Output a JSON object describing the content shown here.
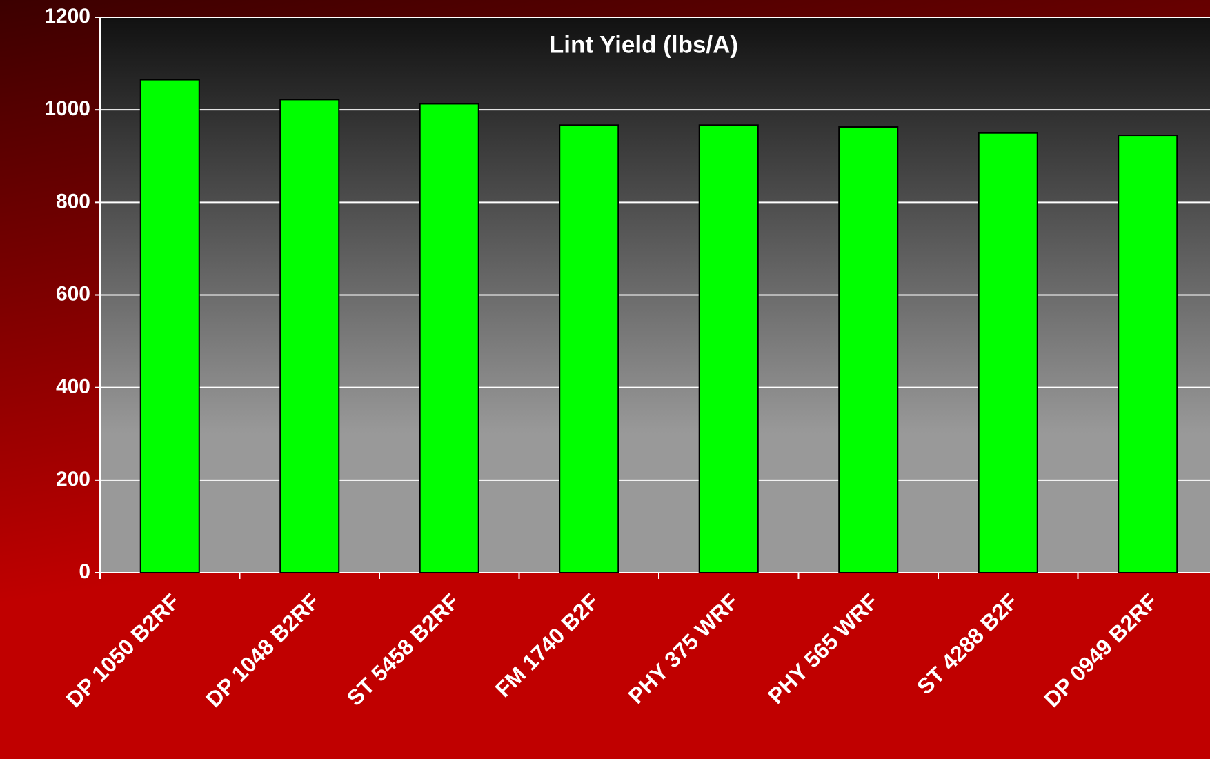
{
  "chart_data": {
    "type": "bar",
    "title": "Lint Yield (lbs/A)",
    "categories": [
      "DP 1050 B2RF",
      "DP 1048 B2RF",
      "ST 5458 B2RF",
      "FM 1740 B2F",
      "PHY 375 WRF",
      "PHY 565 WRF",
      "ST 4288 B2F",
      "DP 0949 B2RF"
    ],
    "values": [
      1065,
      1022,
      1013,
      967,
      967,
      963,
      950,
      945
    ],
    "color": "#00ff00",
    "ylim": [
      0,
      1200
    ],
    "yticks": [
      0,
      200,
      400,
      600,
      800,
      1000,
      1200
    ],
    "grid": true
  }
}
